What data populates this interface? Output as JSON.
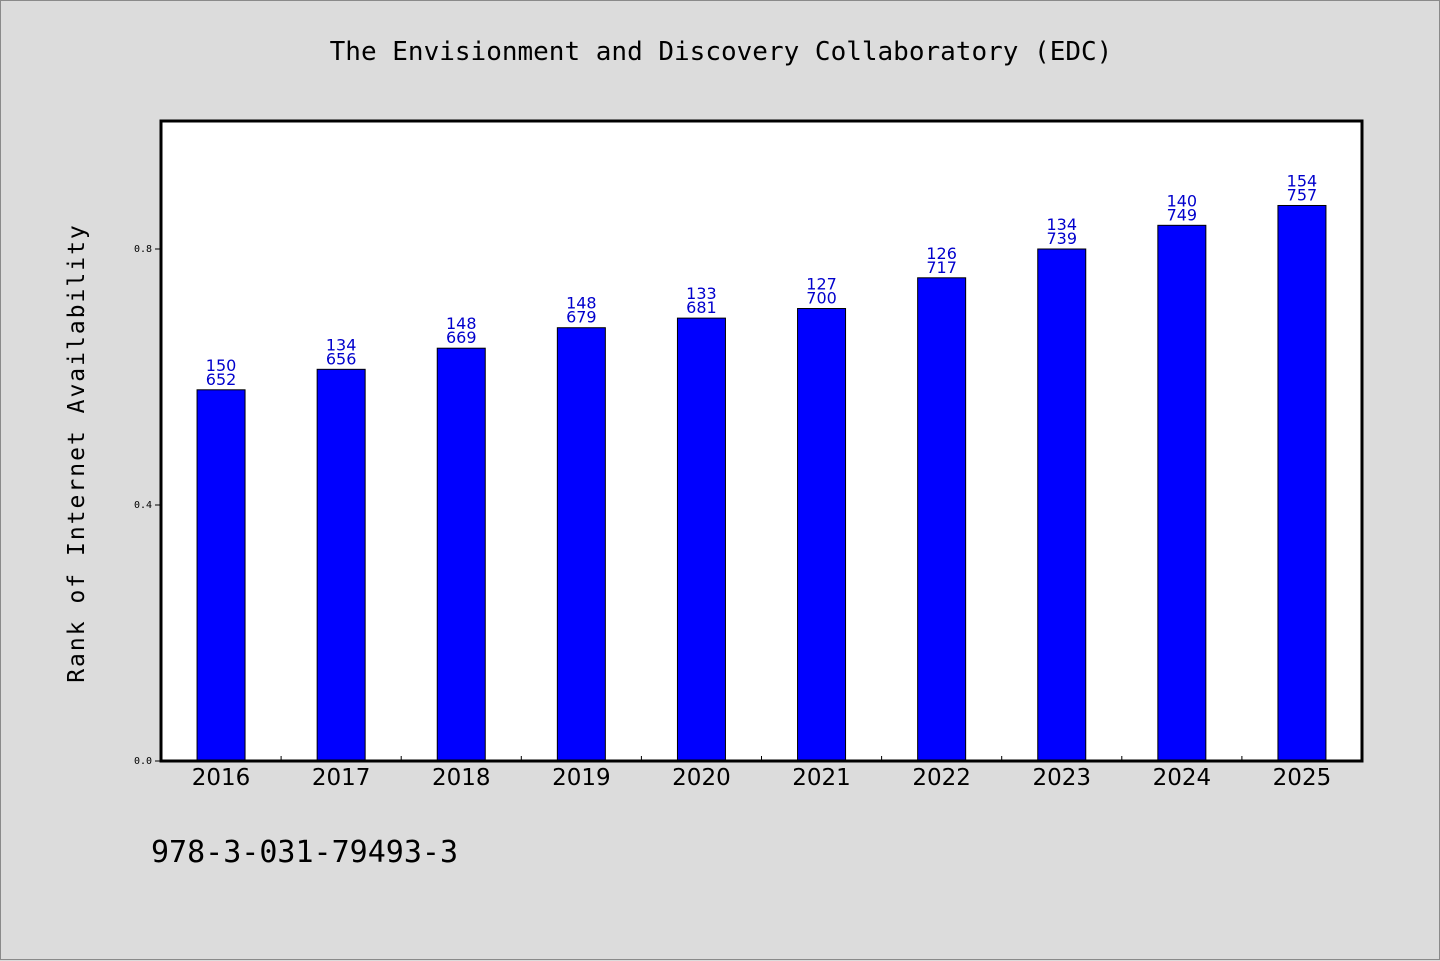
{
  "chart_data": {
    "type": "bar",
    "title": "The Envisionment and Discovery Collaboratory (EDC)",
    "xlabel": "",
    "ylabel": "Rank of Internet Availability",
    "categories": [
      "2016",
      "2017",
      "2018",
      "2019",
      "2020",
      "2021",
      "2022",
      "2023",
      "2024",
      "2025"
    ],
    "values": [
      0.58,
      0.612,
      0.645,
      0.677,
      0.692,
      0.707,
      0.755,
      0.8,
      0.837,
      0.868
    ],
    "data_labels": [
      [
        "150",
        "652"
      ],
      [
        "134",
        "656"
      ],
      [
        "148",
        "669"
      ],
      [
        "148",
        "679"
      ],
      [
        "133",
        "681"
      ],
      [
        "127",
        "700"
      ],
      [
        "126",
        "717"
      ],
      [
        "134",
        "739"
      ],
      [
        "140",
        "749"
      ],
      [
        "154",
        "757"
      ]
    ],
    "ylim": [
      0,
      1.0
    ],
    "yticks": [
      "0.0",
      "0.4",
      "0.8"
    ],
    "ytick_values": [
      0.0,
      0.4,
      0.8
    ],
    "bar_color": "#0000ff",
    "label_color": "#0000cc",
    "grid": false,
    "legend": "none"
  },
  "footer": {
    "isbn": "978-3-031-79493-3"
  }
}
